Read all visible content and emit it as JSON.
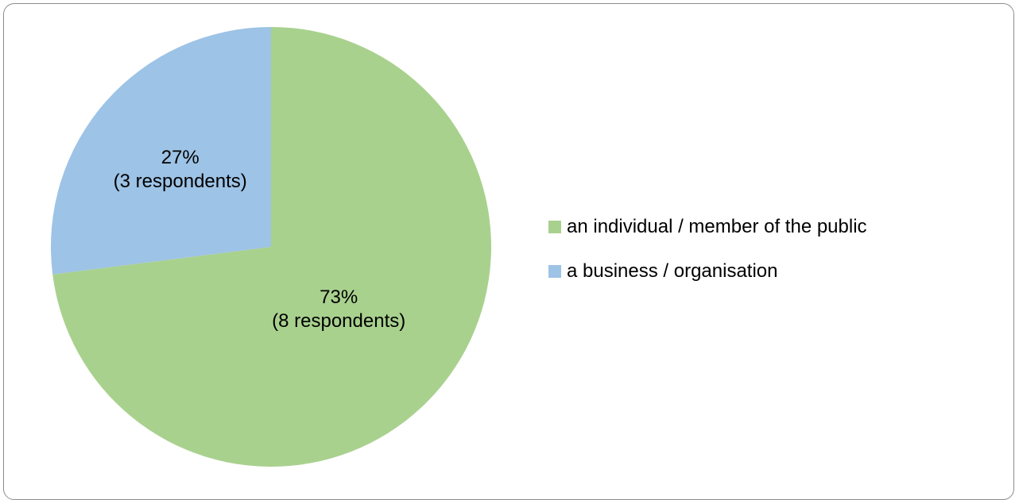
{
  "chart_data": {
    "type": "pie",
    "categories": [
      "an individual / member of the public",
      "a business / organisation"
    ],
    "values": [
      73,
      27
    ],
    "counts": [
      8,
      3
    ],
    "data_labels": [
      [
        "73%",
        "(8 respondents)"
      ],
      [
        "27%",
        "(3 respondents)"
      ]
    ],
    "colors": [
      "#a9d18e",
      "#9dc3e6"
    ],
    "legend_position": "right",
    "title": ""
  }
}
